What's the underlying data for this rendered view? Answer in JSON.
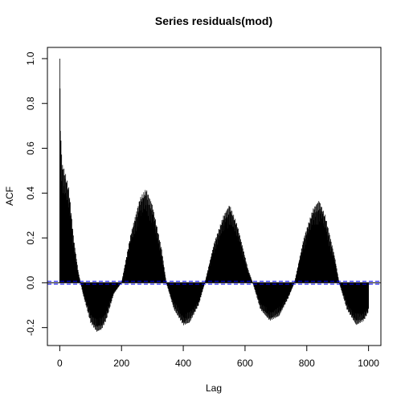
{
  "chart_data": {
    "type": "bar",
    "title": "Series  residuals(mod)",
    "xlabel": "Lag",
    "ylabel": "ACF",
    "xlim": [
      -40,
      1040
    ],
    "ylim": [
      -0.28,
      1.05
    ],
    "xticks": [
      0,
      200,
      400,
      600,
      800,
      1000
    ],
    "xtick_labels": [
      "0",
      "200",
      "400",
      "600",
      "800",
      "1000"
    ],
    "yticks": [
      -0.2,
      0.0,
      0.2,
      0.4,
      0.6,
      0.8,
      1.0
    ],
    "ytick_labels": [
      "-0.2",
      "0.0",
      "0.2",
      "0.4",
      "0.6",
      "0.8",
      "1.0"
    ],
    "confidence_bound": 0.0062,
    "max_lag": 1000,
    "bar_color": "#000000",
    "zero_line_color": "#000000",
    "ci_line_color": "#0000ff",
    "series_model": {
      "description_points": [
        [
          0,
          1.0
        ],
        [
          2,
          0.76
        ],
        [
          4,
          0.64
        ],
        [
          8,
          0.53
        ],
        [
          12,
          0.52
        ],
        [
          20,
          0.48
        ],
        [
          30,
          0.42
        ],
        [
          45,
          0.2
        ],
        [
          60,
          0.05
        ],
        [
          75,
          -0.05
        ],
        [
          100,
          -0.18
        ],
        [
          120,
          -0.22
        ],
        [
          135,
          -0.21
        ],
        [
          150,
          -0.17
        ],
        [
          175,
          -0.05
        ],
        [
          200,
          0.0
        ],
        [
          230,
          0.22
        ],
        [
          260,
          0.38
        ],
        [
          280,
          0.42
        ],
        [
          300,
          0.35
        ],
        [
          330,
          0.15
        ],
        [
          345,
          0.0
        ],
        [
          370,
          -0.12
        ],
        [
          400,
          -0.19
        ],
        [
          420,
          -0.18
        ],
        [
          450,
          -0.1
        ],
        [
          470,
          0.0
        ],
        [
          500,
          0.18
        ],
        [
          530,
          0.3
        ],
        [
          550,
          0.35
        ],
        [
          575,
          0.26
        ],
        [
          610,
          0.06
        ],
        [
          625,
          0.0
        ],
        [
          650,
          -0.12
        ],
        [
          680,
          -0.17
        ],
        [
          710,
          -0.15
        ],
        [
          740,
          -0.07
        ],
        [
          760,
          0.0
        ],
        [
          790,
          0.2
        ],
        [
          820,
          0.33
        ],
        [
          840,
          0.37
        ],
        [
          860,
          0.3
        ],
        [
          890,
          0.12
        ],
        [
          905,
          0.0
        ],
        [
          930,
          -0.12
        ],
        [
          960,
          -0.19
        ],
        [
          985,
          -0.17
        ],
        [
          1000,
          -0.13
        ]
      ]
    }
  }
}
